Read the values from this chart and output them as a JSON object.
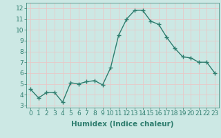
{
  "x": [
    0,
    1,
    2,
    3,
    4,
    5,
    6,
    7,
    8,
    9,
    10,
    11,
    12,
    13,
    14,
    15,
    16,
    17,
    18,
    19,
    20,
    21,
    22,
    23
  ],
  "y": [
    4.5,
    3.7,
    4.2,
    4.2,
    3.3,
    5.1,
    5.0,
    5.2,
    5.3,
    4.9,
    6.5,
    9.5,
    11.0,
    11.8,
    11.8,
    10.8,
    10.5,
    9.3,
    8.3,
    7.5,
    7.4,
    7.0,
    7.0,
    6.0
  ],
  "line_color": "#2e7d6e",
  "marker_color": "#2e7d6e",
  "bg_color": "#cce8e4",
  "grid_color": "#e8c8c8",
  "xlabel": "Humidex (Indice chaleur)",
  "xlabel_fontsize": 7.5,
  "ylabel_ticks": [
    3,
    4,
    5,
    6,
    7,
    8,
    9,
    10,
    11,
    12
  ],
  "xtick_labels": [
    "0",
    "1",
    "2",
    "3",
    "4",
    "5",
    "6",
    "7",
    "8",
    "9",
    "10",
    "11",
    "12",
    "13",
    "14",
    "15",
    "16",
    "17",
    "18",
    "19",
    "20",
    "21",
    "22",
    "23"
  ],
  "ylim": [
    2.8,
    12.5
  ],
  "xlim": [
    -0.5,
    23.5
  ],
  "tick_fontsize": 6.5,
  "line_width": 1.0,
  "marker_size": 2.5
}
